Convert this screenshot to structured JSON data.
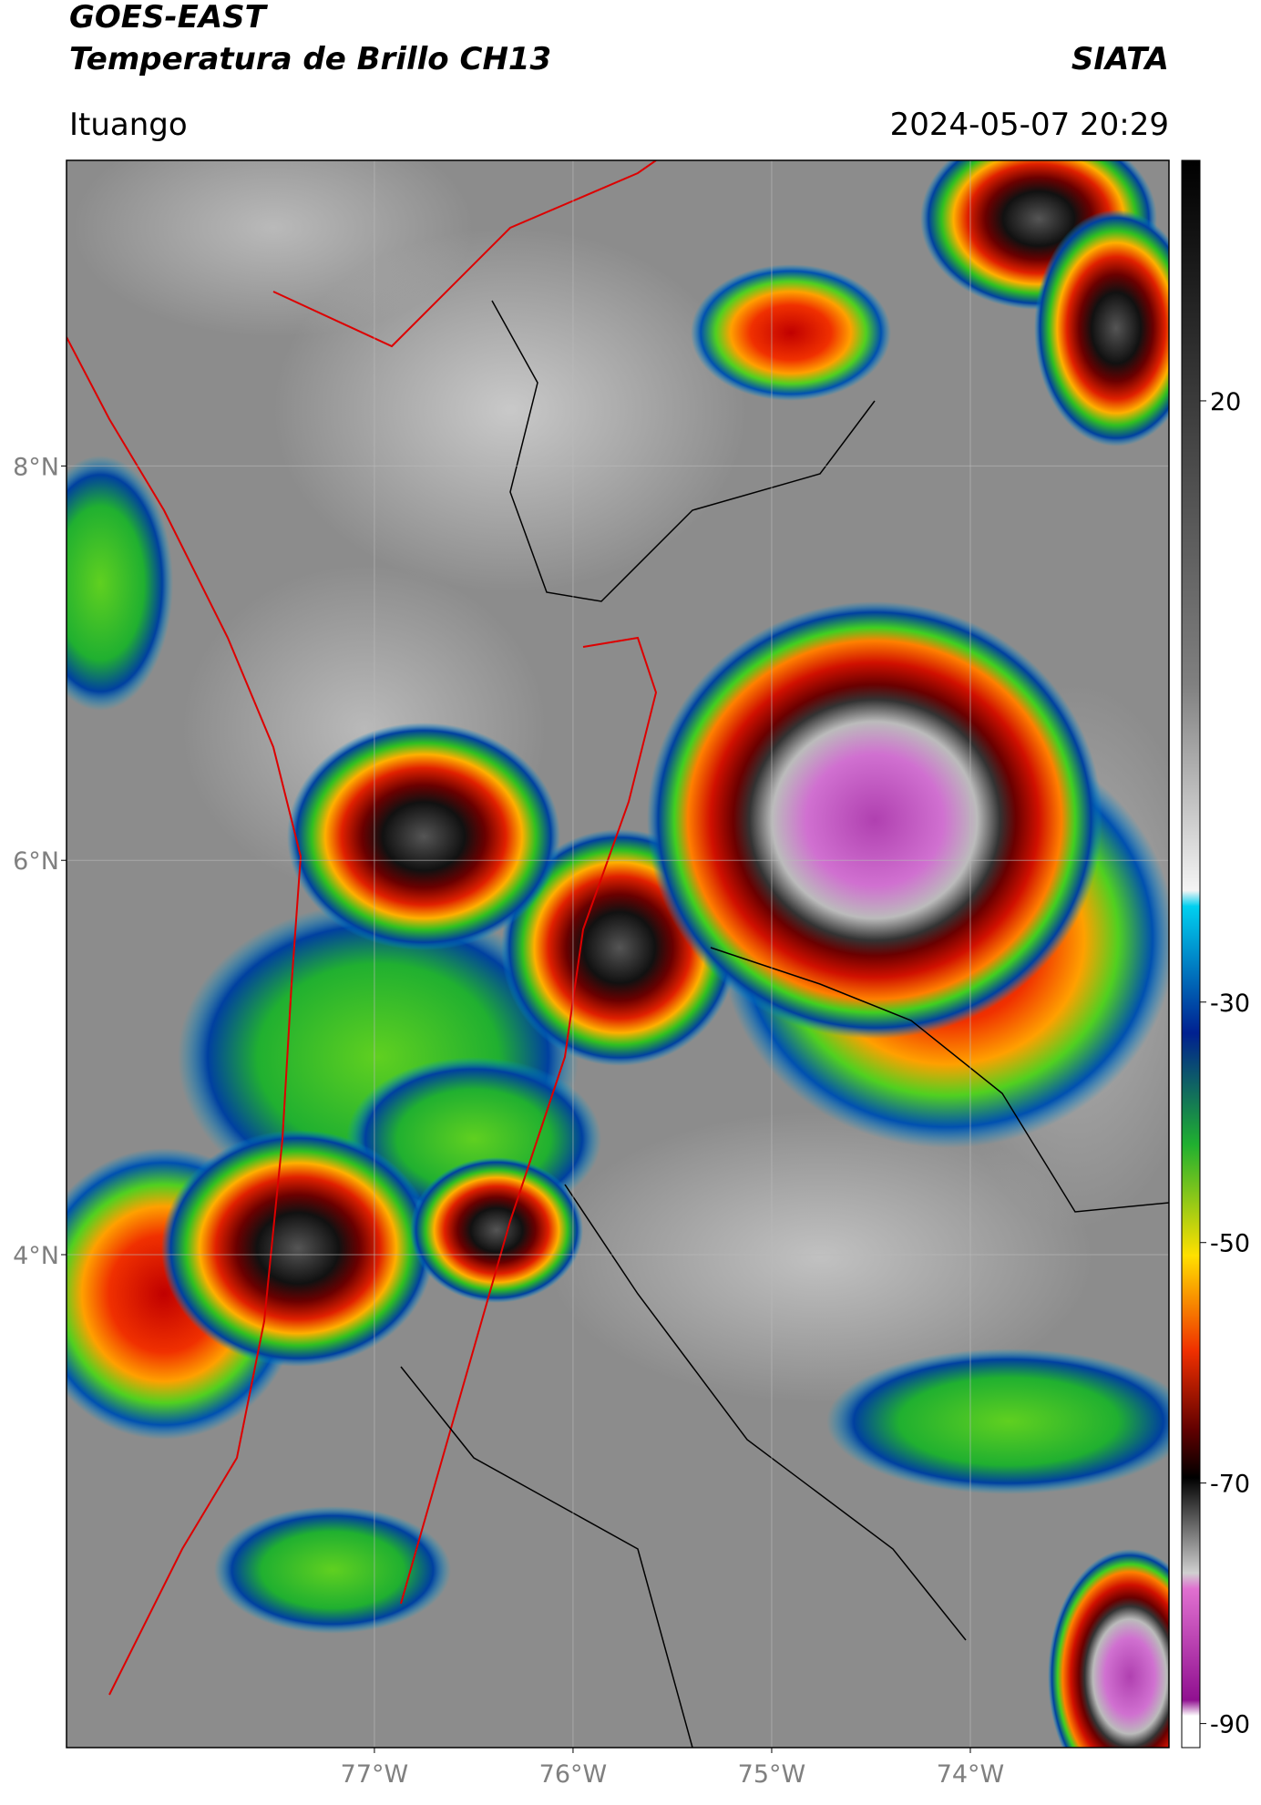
{
  "header": {
    "title": "GOES-EAST",
    "subtitle": "Temperatura de Brillo CH13",
    "source": "SIATA",
    "location": "Ituango",
    "datetime": "2024-05-07 20:29"
  },
  "chart_data": {
    "type": "map",
    "xlim": [
      -78.55,
      -73
    ],
    "ylim": [
      1.5,
      9.55
    ],
    "xticks": [
      {
        "value": -77,
        "label": "77°W"
      },
      {
        "value": -76,
        "label": "76°W"
      },
      {
        "value": -75,
        "label": "75°W"
      },
      {
        "value": -74,
        "label": "74°W"
      }
    ],
    "yticks": [
      {
        "value": 8,
        "label": "8°N"
      },
      {
        "value": 6,
        "label": "6°N"
      },
      {
        "value": 4,
        "label": "4°N"
      }
    ],
    "grid": true,
    "colorbar": {
      "lim": [
        -92,
        40
      ],
      "ticks": [
        20,
        -30,
        -50,
        -70,
        -90
      ]
    }
  }
}
